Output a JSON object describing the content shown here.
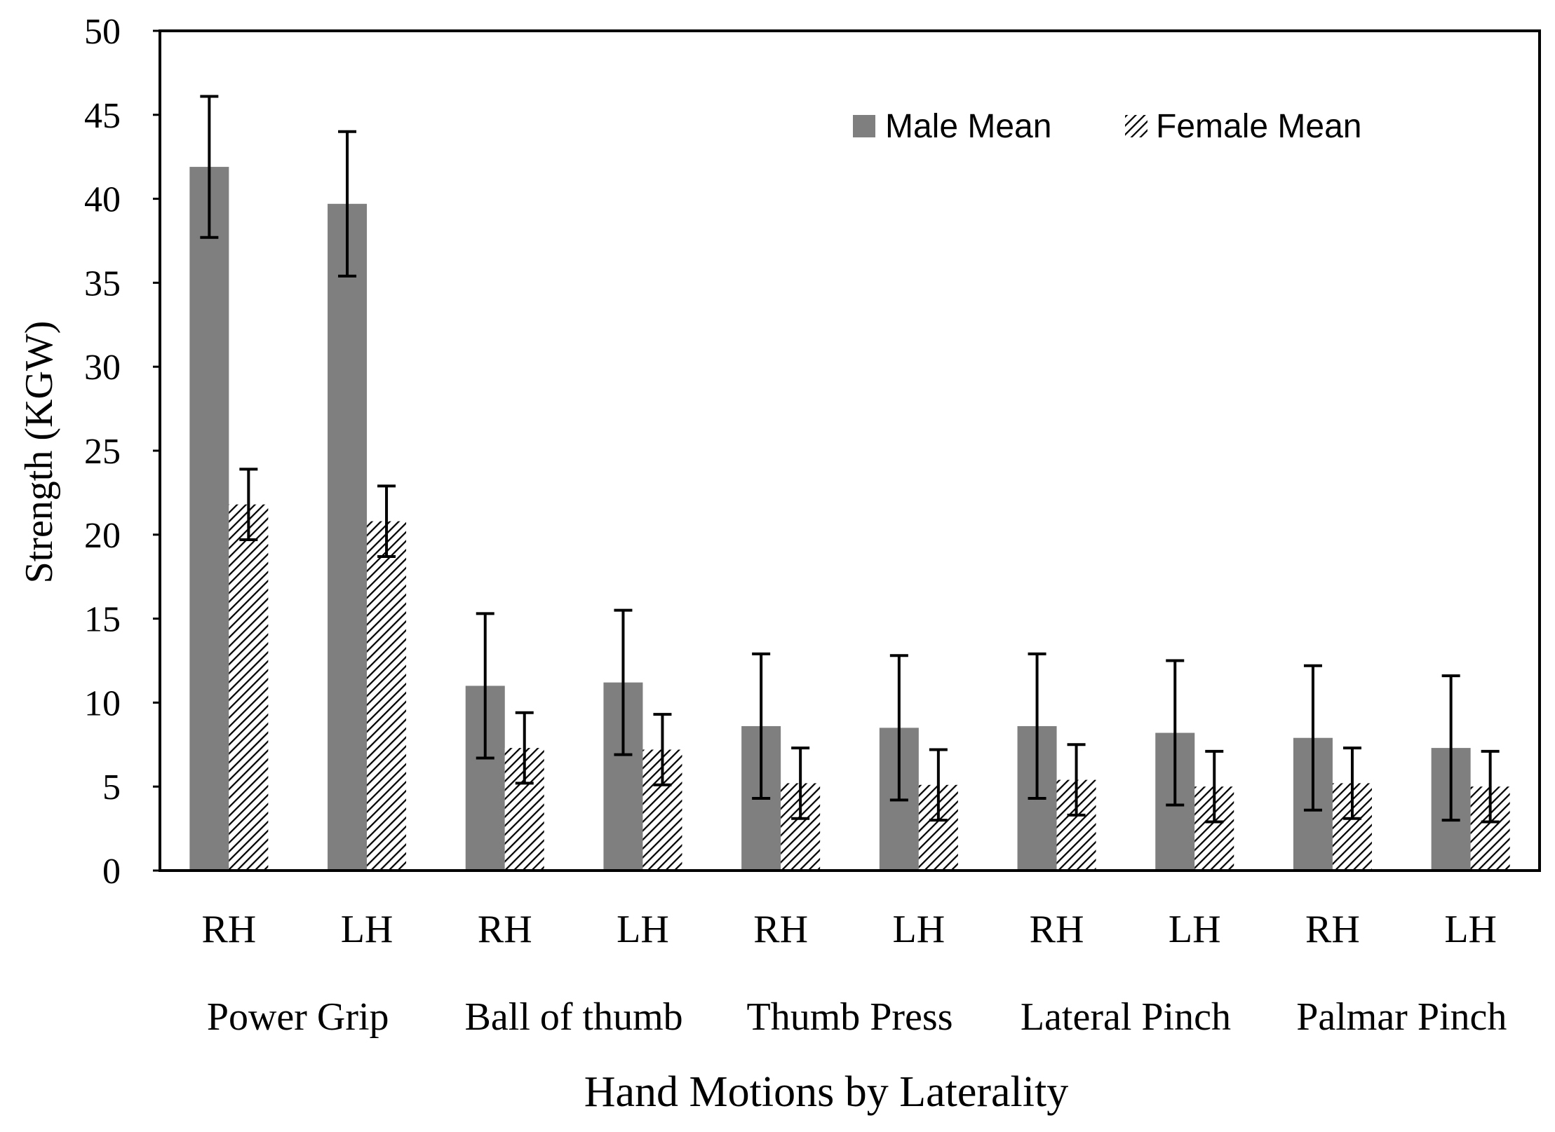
{
  "chart_data": {
    "type": "bar",
    "title": "",
    "xlabel": "Hand Motions by Laterality",
    "ylabel": "Strength (KGW)",
    "ylim": [
      0,
      50
    ],
    "yticks": [
      0,
      5,
      10,
      15,
      20,
      25,
      30,
      35,
      40,
      45,
      50
    ],
    "groups": [
      "Power Grip",
      "Ball of thumb",
      "Thumb Press",
      "Lateral Pinch",
      "Palmar Pinch"
    ],
    "categories": [
      "RH",
      "LH",
      "RH",
      "LH",
      "RH",
      "LH",
      "RH",
      "LH",
      "RH",
      "LH"
    ],
    "legend_position": "top-right",
    "grid": false,
    "series": [
      {
        "name": "Male Mean",
        "color": "#7f7f7f",
        "pattern": "solid",
        "values": [
          41.9,
          39.7,
          11.0,
          11.2,
          8.6,
          8.5,
          8.6,
          8.2,
          7.9,
          7.3
        ],
        "error": [
          4.2,
          4.3,
          4.3,
          4.3,
          4.3,
          4.3,
          4.3,
          4.3,
          4.3,
          4.3
        ]
      },
      {
        "name": "Female Mean",
        "color": "#000000",
        "pattern": "hatched",
        "values": [
          21.8,
          20.8,
          7.3,
          7.2,
          5.2,
          5.1,
          5.4,
          5.0,
          5.2,
          5.0
        ],
        "error": [
          2.1,
          2.1,
          2.1,
          2.1,
          2.1,
          2.1,
          2.1,
          2.1,
          2.1,
          2.1
        ]
      }
    ]
  }
}
